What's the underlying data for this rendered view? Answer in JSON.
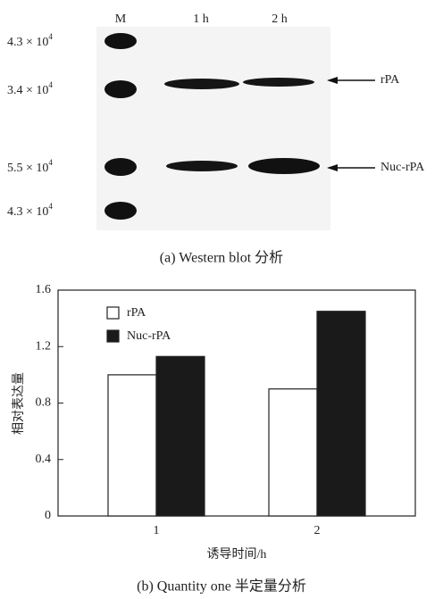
{
  "blot": {
    "lanes": [
      "M",
      "1 h",
      "2 h"
    ],
    "markers": [
      {
        "mantissa": "4.3 × 10",
        "exponent": "4"
      },
      {
        "mantissa": "3.4 × 10",
        "exponent": "4"
      },
      {
        "mantissa": "5.5 × 10",
        "exponent": "4"
      },
      {
        "mantissa": "4.3 × 10",
        "exponent": "4"
      }
    ],
    "arrows": [
      "rPA",
      "Nuc-rPA"
    ],
    "caption": "(a)  Western blot 分析"
  },
  "chart_data": {
    "type": "bar",
    "categories": [
      "1",
      "2"
    ],
    "series": [
      {
        "name": "rPA",
        "color": "#ffffff",
        "values": [
          1.0,
          0.9
        ]
      },
      {
        "name": "Nuc-rPA",
        "color": "#1a1a1a",
        "values": [
          1.13,
          1.45
        ]
      }
    ],
    "ylim": [
      0,
      1.6
    ],
    "yticks": [
      0,
      0.4,
      0.8,
      1.2,
      1.6
    ],
    "ylabel": "相对表达量",
    "xlabel": "诱导时间/h",
    "grid": false,
    "legend": "top-left",
    "caption": "(b)  Quantity one 半定量分析"
  }
}
